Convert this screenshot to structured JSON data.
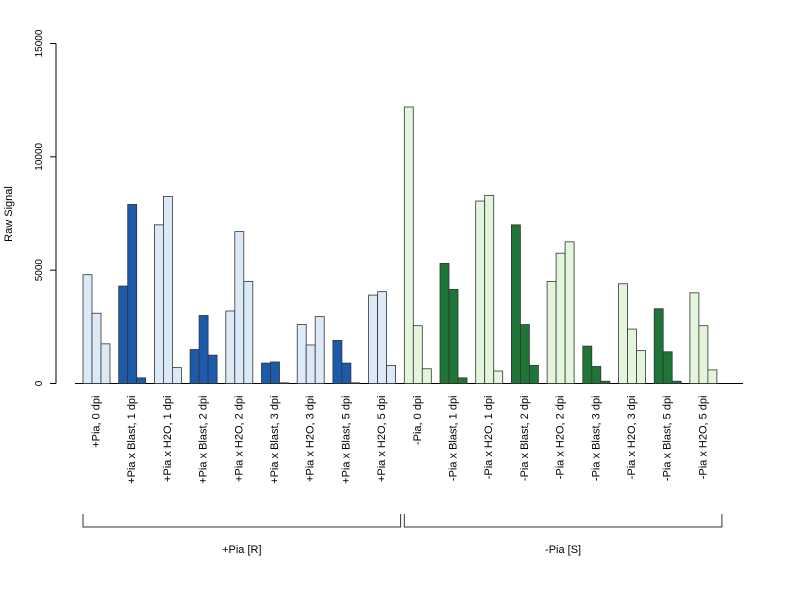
{
  "chart_data": {
    "type": "bar",
    "ylabel": "Raw Signal",
    "ylim": [
      0,
      15000
    ],
    "yticks": [
      0,
      5000,
      10000,
      15000
    ],
    "yticks_labels": [
      "0",
      "5000",
      "10000",
      "15000"
    ],
    "categories": [
      "+Pia, 0 dpi",
      "+Pia x Blast, 1 dpi",
      "+Pia x H2O, 1 dpi",
      "+Pia x Blast, 2 dpi",
      "+Pia x H2O, 2 dpi",
      "+Pia x Blast, 3 dpi",
      "+Pia x H2O, 3 dpi",
      "+Pia x Blast, 5 dpi",
      "+Pia x H2O, 5 dpi",
      "-Pia, 0 dpi",
      "-Pia x Blast, 1 dpi",
      "-Pia x H2O, 1 dpi",
      "-Pia x Blast, 2 dpi",
      "-Pia x H2O, 2 dpi",
      "-Pia x Blast, 3 dpi",
      "-Pia x H2O, 3 dpi",
      "-Pia x Blast, 5 dpi",
      "-Pia x H2O, 5 dpi"
    ],
    "bar_colors": [
      "#dce9f7",
      "#1c5aab",
      "#dce9f7",
      "#1c5aab",
      "#dce9f7",
      "#1c5aab",
      "#dce9f7",
      "#1c5aab",
      "#dce9f7",
      "#e3f6dc",
      "#1e7535",
      "#e3f6dc",
      "#1e7535",
      "#e3f6dc",
      "#1e7535",
      "#e3f6dc",
      "#1e7535",
      "#e3f6dc"
    ],
    "values": [
      [
        4800,
        3100,
        1750
      ],
      [
        4300,
        7900,
        250
      ],
      [
        7000,
        8250,
        700
      ],
      [
        1500,
        3000,
        1250
      ],
      [
        3200,
        6700,
        4500
      ],
      [
        900,
        950,
        30
      ],
      [
        2600,
        1700,
        2950
      ],
      [
        1900,
        900,
        30
      ],
      [
        3900,
        4050,
        800
      ],
      [
        12200,
        2550,
        650
      ],
      [
        5300,
        4150,
        250
      ],
      [
        8050,
        8300,
        550
      ],
      [
        7000,
        2600,
        800
      ],
      [
        4500,
        5750,
        6250
      ],
      [
        1650,
        750,
        100
      ],
      [
        4400,
        2400,
        1450
      ],
      [
        3300,
        1400,
        100
      ],
      [
        4000,
        2550,
        600
      ]
    ],
    "groups": [
      {
        "label": "+Pia [R]",
        "first": 0,
        "last": 8
      },
      {
        "label": "-Pia [S]",
        "first": 9,
        "last": 17
      }
    ],
    "grid": false,
    "legend": "none",
    "colors": {
      "outline": "#333333",
      "axis": "#000000"
    }
  }
}
